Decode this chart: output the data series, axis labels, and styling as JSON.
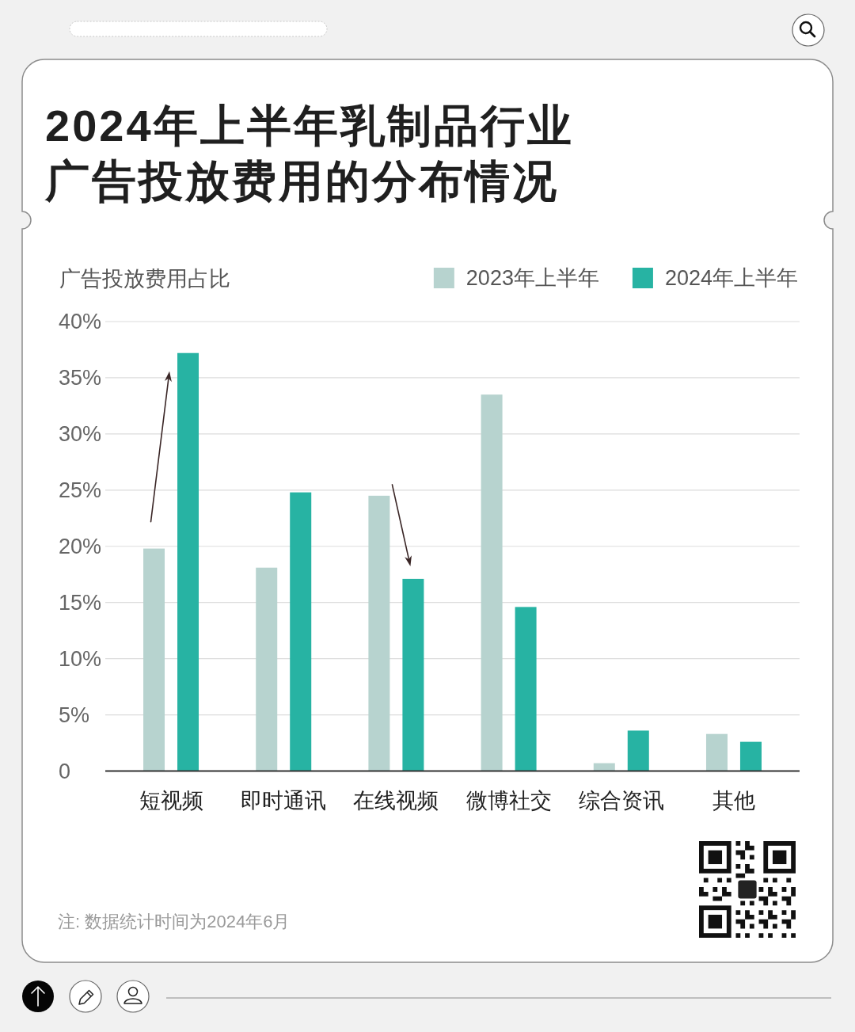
{
  "chart_data": {
    "type": "bar",
    "title": "2024年上半年乳制品行业广告投放费用的分布情况",
    "ylabel": "广告投放费用占比",
    "categories": [
      "短视频",
      "即时通讯",
      "在线视频",
      "微博社交",
      "综合资讯",
      "其他"
    ],
    "series": [
      {
        "name": "2023年上半年",
        "color": "#b7d3cf",
        "values": [
          19.8,
          18.1,
          24.5,
          33.5,
          0.7,
          3.3
        ]
      },
      {
        "name": "2024年上半年",
        "color": "#27b3a3",
        "values": [
          37.2,
          24.8,
          17.1,
          14.6,
          3.6,
          2.6
        ]
      }
    ],
    "ylim": [
      0,
      40
    ],
    "yticks": [
      0,
      {
        "value": 5,
        "label": "5%"
      },
      {
        "value": 10,
        "label": "10%"
      },
      {
        "value": 15,
        "label": "15%"
      },
      {
        "value": 20,
        "label": "20%"
      },
      {
        "value": 25,
        "label": "25%"
      },
      {
        "value": 30,
        "label": "30%"
      },
      {
        "value": 35,
        "label": "35%"
      },
      {
        "value": 40,
        "label": "40%"
      }
    ],
    "grid": "y",
    "legend": "top right",
    "annotations": [
      "注: 数据统计时间为2024年6月"
    ]
  }
}
